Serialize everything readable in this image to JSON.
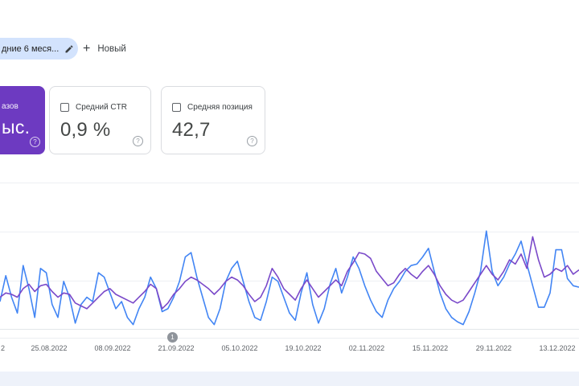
{
  "header": {
    "date_filter_chip_label": "дние 6 меся...",
    "new_button_label": "Новый",
    "plus_icon": "+"
  },
  "cards": {
    "impressions": {
      "label_fragment": "азов",
      "value_fragment": "ыс.",
      "help_icon": "?",
      "bg_color": "#6d3ac1",
      "selected": true
    },
    "ctr": {
      "label": "Средний CTR",
      "value": "0,9 %",
      "help_icon": "?",
      "checkbox_checked": false
    },
    "position": {
      "label": "Средняя позиция",
      "value": "42,7",
      "help_icon": "?",
      "checkbox_checked": false
    }
  },
  "chart": {
    "annotation_marker_label": "1"
  },
  "chart_data": {
    "type": "line",
    "title": "",
    "xlabel": "",
    "ylabel": "",
    "x_tick_labels": [
      "2",
      "25.08.2022",
      "08.09.2022",
      "21.09.2022",
      "05.10.2022",
      "19.10.2022",
      "02.11.2022",
      "15.11.2022",
      "29.11.2022",
      "13.12.2022"
    ],
    "x_note": "daily points over ~6 months; first tick truncated by screen edge",
    "y_axis": "unlabeled, relative scale 0-100",
    "ylim": [
      0,
      100
    ],
    "grid": "horizontal",
    "legend": "none visible",
    "series": [
      {
        "name": "blue-line",
        "color": "#4285f4",
        "values": [
          19,
          37,
          22,
          11,
          44,
          28,
          8,
          42,
          39,
          17,
          8,
          33,
          22,
          4,
          17,
          22,
          19,
          39,
          36,
          25,
          14,
          19,
          8,
          3,
          14,
          22,
          36,
          28,
          12,
          14,
          22,
          33,
          50,
          53,
          36,
          22,
          8,
          3,
          14,
          33,
          42,
          47,
          33,
          19,
          8,
          6,
          19,
          36,
          33,
          22,
          11,
          6,
          25,
          39,
          17,
          4,
          14,
          31,
          42,
          25,
          36,
          50,
          42,
          30,
          20,
          12,
          8,
          20,
          28,
          33,
          40,
          44,
          45,
          50,
          56,
          40,
          25,
          14,
          8,
          5,
          3,
          12,
          25,
          40,
          68,
          40,
          30,
          36,
          45,
          52,
          61,
          45,
          30,
          15,
          15,
          25,
          55,
          55,
          35,
          30,
          29
        ]
      },
      {
        "name": "purple-line",
        "color": "#7a49c9",
        "values": [
          22,
          25,
          24,
          22,
          28,
          31,
          26,
          30,
          31,
          26,
          22,
          25,
          24,
          18,
          16,
          14,
          18,
          22,
          26,
          28,
          24,
          22,
          20,
          18,
          22,
          26,
          31,
          28,
          14,
          18,
          24,
          28,
          33,
          36,
          34,
          31,
          28,
          24,
          28,
          33,
          36,
          34,
          30,
          24,
          19,
          22,
          30,
          42,
          36,
          28,
          24,
          20,
          28,
          34,
          28,
          22,
          26,
          30,
          34,
          30,
          40,
          46,
          53,
          52,
          49,
          40,
          35,
          30,
          32,
          38,
          42,
          38,
          35,
          40,
          44,
          38,
          30,
          24,
          20,
          18,
          20,
          26,
          32,
          38,
          44,
          38,
          34,
          40,
          48,
          45,
          52,
          42,
          64,
          48,
          36,
          38,
          42,
          40,
          44,
          38,
          41
        ]
      }
    ]
  },
  "colors": {
    "chip_bg": "#d3e3fd",
    "card_border": "#dadce0",
    "impressions_card_purple": "#6d3ac1",
    "blue_line": "#4285f4",
    "purple_line": "#7a49c9",
    "text_primary": "#3c4043",
    "text_secondary": "#5f6368",
    "bottom_band": "#eef2fa",
    "annotation_marker_gray": "#8f949b"
  }
}
